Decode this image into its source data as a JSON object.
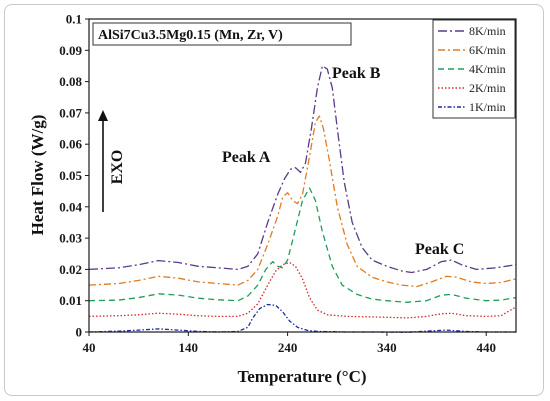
{
  "chart_data": {
    "type": "line",
    "title": "AlSi7Cu3.5Mg0.15 (Mn, Zr, V)",
    "xlabel": "Temperature (°C)",
    "ylabel": "Heat Flow (W/g)",
    "xlim": [
      40,
      470
    ],
    "ylim": [
      0,
      0.1
    ],
    "xticks": [
      "40",
      "140",
      "240",
      "340",
      "440"
    ],
    "yticks": [
      "0",
      "0.01",
      "0.02",
      "0.03",
      "0.04",
      "0.05",
      "0.06",
      "0.07",
      "0.08",
      "0.09",
      "0.1"
    ],
    "grid": false,
    "legend_position": "top-right",
    "annotations": {
      "exo": "EXO",
      "peak_a": "Peak A",
      "peak_b": "Peak B",
      "peak_c": "Peak C"
    },
    "series": [
      {
        "name": "8K/min",
        "color": "#5a3a8a",
        "dash": "9,3,2,3",
        "points": [
          [
            40,
            0.02
          ],
          [
            70,
            0.0205
          ],
          [
            90,
            0.0215
          ],
          [
            110,
            0.0228
          ],
          [
            130,
            0.0222
          ],
          [
            150,
            0.021
          ],
          [
            170,
            0.0205
          ],
          [
            190,
            0.02
          ],
          [
            200,
            0.021
          ],
          [
            210,
            0.025
          ],
          [
            220,
            0.035
          ],
          [
            230,
            0.044
          ],
          [
            237,
            0.049
          ],
          [
            243,
            0.052
          ],
          [
            248,
            0.0525
          ],
          [
            253,
            0.051
          ],
          [
            258,
            0.054
          ],
          [
            264,
            0.065
          ],
          [
            270,
            0.078
          ],
          [
            275,
            0.085
          ],
          [
            280,
            0.084
          ],
          [
            285,
            0.078
          ],
          [
            290,
            0.065
          ],
          [
            297,
            0.048
          ],
          [
            305,
            0.035
          ],
          [
            315,
            0.027
          ],
          [
            325,
            0.023
          ],
          [
            340,
            0.021
          ],
          [
            355,
            0.0195
          ],
          [
            365,
            0.019
          ],
          [
            380,
            0.02
          ],
          [
            395,
            0.0225
          ],
          [
            405,
            0.023
          ],
          [
            415,
            0.0215
          ],
          [
            430,
            0.02
          ],
          [
            450,
            0.0205
          ],
          [
            470,
            0.0215
          ]
        ]
      },
      {
        "name": "6K/min",
        "color": "#e07b20",
        "dash": "7,3,2,3",
        "points": [
          [
            40,
            0.015
          ],
          [
            70,
            0.0155
          ],
          [
            90,
            0.0165
          ],
          [
            110,
            0.0178
          ],
          [
            130,
            0.0172
          ],
          [
            150,
            0.016
          ],
          [
            170,
            0.0155
          ],
          [
            190,
            0.015
          ],
          [
            200,
            0.0165
          ],
          [
            210,
            0.02
          ],
          [
            220,
            0.028
          ],
          [
            230,
            0.037
          ],
          [
            235,
            0.043
          ],
          [
            240,
            0.0445
          ],
          [
            245,
            0.042
          ],
          [
            250,
            0.041
          ],
          [
            255,
            0.044
          ],
          [
            262,
            0.056
          ],
          [
            268,
            0.067
          ],
          [
            272,
            0.069
          ],
          [
            276,
            0.065
          ],
          [
            282,
            0.055
          ],
          [
            290,
            0.04
          ],
          [
            300,
            0.028
          ],
          [
            310,
            0.021
          ],
          [
            325,
            0.0175
          ],
          [
            340,
            0.016
          ],
          [
            355,
            0.015
          ],
          [
            370,
            0.0145
          ],
          [
            385,
            0.016
          ],
          [
            400,
            0.0178
          ],
          [
            410,
            0.0175
          ],
          [
            425,
            0.016
          ],
          [
            440,
            0.0155
          ],
          [
            455,
            0.0158
          ],
          [
            470,
            0.017
          ]
        ]
      },
      {
        "name": "4K/min",
        "color": "#1e9e5a",
        "dash": "6,4",
        "points": [
          [
            40,
            0.01
          ],
          [
            70,
            0.0102
          ],
          [
            90,
            0.011
          ],
          [
            110,
            0.0122
          ],
          [
            130,
            0.0118
          ],
          [
            150,
            0.0108
          ],
          [
            170,
            0.0103
          ],
          [
            190,
            0.01
          ],
          [
            200,
            0.0115
          ],
          [
            210,
            0.015
          ],
          [
            218,
            0.02
          ],
          [
            225,
            0.0225
          ],
          [
            230,
            0.021
          ],
          [
            235,
            0.0205
          ],
          [
            240,
            0.023
          ],
          [
            248,
            0.033
          ],
          [
            255,
            0.042
          ],
          [
            262,
            0.046
          ],
          [
            268,
            0.042
          ],
          [
            275,
            0.032
          ],
          [
            285,
            0.021
          ],
          [
            295,
            0.015
          ],
          [
            310,
            0.012
          ],
          [
            325,
            0.0105
          ],
          [
            340,
            0.01
          ],
          [
            360,
            0.0095
          ],
          [
            380,
            0.01
          ],
          [
            395,
            0.0118
          ],
          [
            405,
            0.012
          ],
          [
            420,
            0.0108
          ],
          [
            440,
            0.01
          ],
          [
            455,
            0.0102
          ],
          [
            470,
            0.011
          ]
        ]
      },
      {
        "name": "2K/min",
        "color": "#d62828",
        "dash": "1.5,2",
        "points": [
          [
            40,
            0.005
          ],
          [
            70,
            0.0052
          ],
          [
            90,
            0.0055
          ],
          [
            110,
            0.006
          ],
          [
            130,
            0.0057
          ],
          [
            150,
            0.0052
          ],
          [
            170,
            0.005
          ],
          [
            190,
            0.005
          ],
          [
            200,
            0.006
          ],
          [
            210,
            0.009
          ],
          [
            220,
            0.015
          ],
          [
            228,
            0.0195
          ],
          [
            235,
            0.0215
          ],
          [
            242,
            0.0222
          ],
          [
            248,
            0.021
          ],
          [
            255,
            0.017
          ],
          [
            262,
            0.011
          ],
          [
            270,
            0.007
          ],
          [
            280,
            0.0055
          ],
          [
            300,
            0.005
          ],
          [
            330,
            0.0048
          ],
          [
            360,
            0.0045
          ],
          [
            380,
            0.005
          ],
          [
            395,
            0.0058
          ],
          [
            405,
            0.006
          ],
          [
            420,
            0.0052
          ],
          [
            440,
            0.005
          ],
          [
            455,
            0.0052
          ],
          [
            470,
            0.008
          ]
        ]
      },
      {
        "name": "1K/min",
        "color": "#1f2aa8",
        "dash": "4,2,1.5,2",
        "points": [
          [
            40,
            0.0
          ],
          [
            70,
            0.0003
          ],
          [
            90,
            0.0006
          ],
          [
            110,
            0.001
          ],
          [
            130,
            0.0006
          ],
          [
            150,
            0.0002
          ],
          [
            170,
            0.0
          ],
          [
            190,
            0.0002
          ],
          [
            200,
            0.0015
          ],
          [
            205,
            0.0045
          ],
          [
            212,
            0.0075
          ],
          [
            220,
            0.0088
          ],
          [
            228,
            0.0085
          ],
          [
            235,
            0.0065
          ],
          [
            242,
            0.0035
          ],
          [
            250,
            0.0015
          ],
          [
            260,
            0.0005
          ],
          [
            270,
            0.0002
          ],
          [
            300,
            0.0
          ],
          [
            330,
            0.0
          ],
          [
            360,
            -0.0001
          ],
          [
            380,
            0.0003
          ],
          [
            400,
            0.0006
          ],
          [
            420,
            0.0002
          ],
          [
            440,
            0.0
          ],
          [
            470,
            0.0
          ]
        ]
      }
    ]
  }
}
